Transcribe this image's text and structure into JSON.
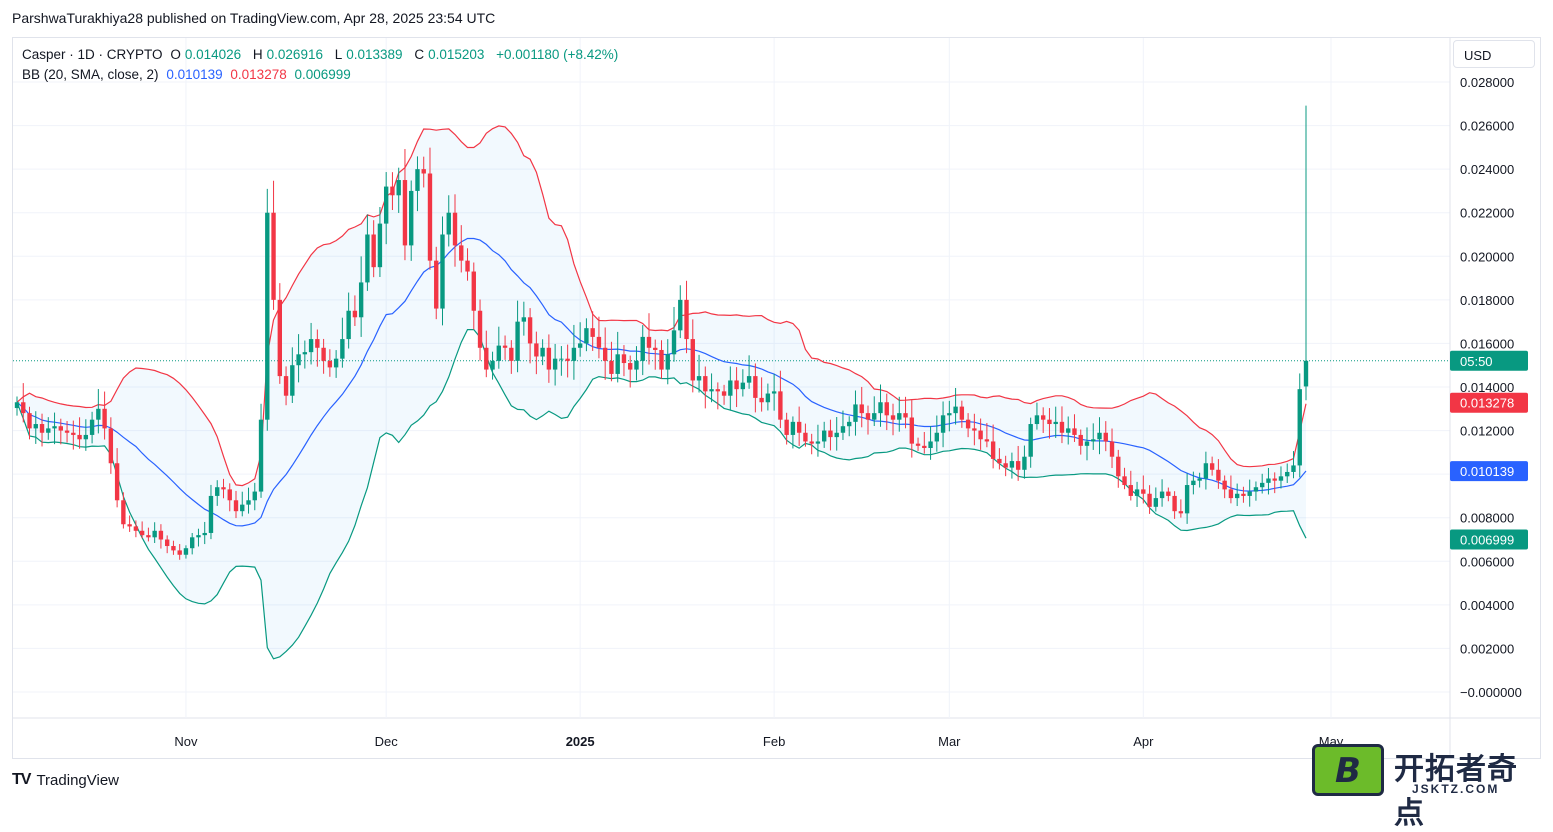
{
  "header": {
    "publisher_line": "ParshwaTurakhiya28 published on TradingView.com, Apr 28, 2025 23:54 UTC"
  },
  "legend": {
    "symbol": "Casper · 1D · CRYPTO",
    "o_label": "O",
    "o_value": "0.014026",
    "h_label": "H",
    "h_value": "0.026916",
    "l_label": "L",
    "l_value": "0.013389",
    "c_label": "C",
    "c_value": "0.015203",
    "change": "+0.001180 (+8.42%)",
    "bb_label": "BB (20, SMA, close, 2)",
    "bb_basis": "0.010139",
    "bb_upper": "0.013278",
    "bb_lower": "0.006999"
  },
  "currency": "USD",
  "footer": {
    "logo_text": "TradingView",
    "logo_mark": "TV"
  },
  "watermark": {
    "letter": "B",
    "name": "开拓者奇点",
    "domain": "JSKTZ.COM"
  },
  "colors": {
    "up": "#089981",
    "down": "#f23645",
    "basis": "#2962ff",
    "upper": "#f23645",
    "lower": "#089981",
    "fill": "#2196f3"
  },
  "chart_data": {
    "type": "candlestick",
    "y_axis_ticks": [
      "0.028000",
      "0.026000",
      "0.024000",
      "0.022000",
      "0.020000",
      "0.018000",
      "0.016000",
      "0.014000",
      "0.012000",
      "0.010000",
      "0.008000",
      "0.006000",
      "0.004000",
      "0.002000",
      "−0.000000"
    ],
    "ylim": [
      -0.0004,
      0.0288
    ],
    "x_axis_labels": [
      {
        "label": "Nov",
        "bold": false
      },
      {
        "label": "Dec",
        "bold": false
      },
      {
        "label": "2025",
        "bold": true
      },
      {
        "label": "Feb",
        "bold": false
      },
      {
        "label": "Mar",
        "bold": false
      },
      {
        "label": "Apr",
        "bold": false
      },
      {
        "label": "May",
        "bold": false
      }
    ],
    "price_tags": [
      {
        "text": "05:50",
        "value": 0.015203,
        "color": "#089981"
      },
      {
        "text": "0.013278",
        "value": 0.013278,
        "color": "#f23645"
      },
      {
        "text": "0.010139",
        "value": 0.010139,
        "color": "#2962ff"
      },
      {
        "text": "0.006999",
        "value": 0.006999,
        "color": "#089981"
      }
    ],
    "last_price": 0.015203,
    "series_close": [
      0.0133,
      0.0128,
      0.0121,
      0.0123,
      0.0119,
      0.0121,
      0.0122,
      0.012,
      0.0119,
      0.0118,
      0.0116,
      0.0118,
      0.0125,
      0.013,
      0.0121,
      0.0105,
      0.0088,
      0.0077,
      0.0076,
      0.0074,
      0.0072,
      0.0071,
      0.0074,
      0.007,
      0.0067,
      0.0065,
      0.0063,
      0.0066,
      0.0071,
      0.0072,
      0.0073,
      0.009,
      0.0094,
      0.0093,
      0.0088,
      0.0083,
      0.0086,
      0.0088,
      0.0092,
      0.0125,
      0.022,
      0.018,
      0.0145,
      0.0136,
      0.015,
      0.0155,
      0.0156,
      0.0162,
      0.0158,
      0.0152,
      0.0149,
      0.0153,
      0.0162,
      0.0175,
      0.0172,
      0.0188,
      0.021,
      0.0195,
      0.0215,
      0.0232,
      0.0228,
      0.0235,
      0.0205,
      0.023,
      0.024,
      0.0238,
      0.0198,
      0.0176,
      0.021,
      0.022,
      0.0205,
      0.0198,
      0.0193,
      0.0175,
      0.0158,
      0.0148,
      0.0152,
      0.0159,
      0.0158,
      0.0152,
      0.017,
      0.0172,
      0.016,
      0.0154,
      0.0158,
      0.0148,
      0.0153,
      0.0153,
      0.0152,
      0.0158,
      0.016,
      0.0167,
      0.0163,
      0.0158,
      0.0152,
      0.0146,
      0.0155,
      0.0151,
      0.0148,
      0.0152,
      0.0163,
      0.0158,
      0.0157,
      0.0148,
      0.0155,
      0.0166,
      0.018,
      0.0162,
      0.0143,
      0.0145,
      0.0138,
      0.0139,
      0.0138,
      0.0136,
      0.0143,
      0.0139,
      0.0142,
      0.0145,
      0.0135,
      0.0133,
      0.0137,
      0.0138,
      0.0125,
      0.0118,
      0.0124,
      0.0119,
      0.0115,
      0.0114,
      0.0115,
      0.012,
      0.0117,
      0.0119,
      0.0122,
      0.0124,
      0.0132,
      0.0128,
      0.0125,
      0.0128,
      0.0133,
      0.0127,
      0.0125,
      0.0128,
      0.0126,
      0.0114,
      0.0113,
      0.0112,
      0.0115,
      0.0119,
      0.0127,
      0.0128,
      0.0131,
      0.0125,
      0.0121,
      0.012,
      0.0116,
      0.0115,
      0.0107,
      0.0105,
      0.0103,
      0.0106,
      0.0102,
      0.0108,
      0.0123,
      0.0127,
      0.0125,
      0.0123,
      0.0124,
      0.0119,
      0.0121,
      0.0118,
      0.0113,
      0.0115,
      0.0116,
      0.0119,
      0.0115,
      0.0108,
      0.0099,
      0.0095,
      0.009,
      0.0093,
      0.0091,
      0.0085,
      0.0089,
      0.0092,
      0.009,
      0.0083,
      0.0082,
      0.0095,
      0.0097,
      0.0098,
      0.0105,
      0.0102,
      0.0097,
      0.0093,
      0.0089,
      0.0091,
      0.009,
      0.0092,
      0.0094,
      0.0096,
      0.0098,
      0.0097,
      0.0099,
      0.0101,
      0.0104,
      0.0139,
      0.015203
    ],
    "highlight_candle": {
      "open": 0.014026,
      "high": 0.026916,
      "low": 0.013389,
      "close": 0.015203
    },
    "bollinger": {
      "period": 20,
      "type": "SMA",
      "source": "close",
      "stddev": 2
    }
  }
}
